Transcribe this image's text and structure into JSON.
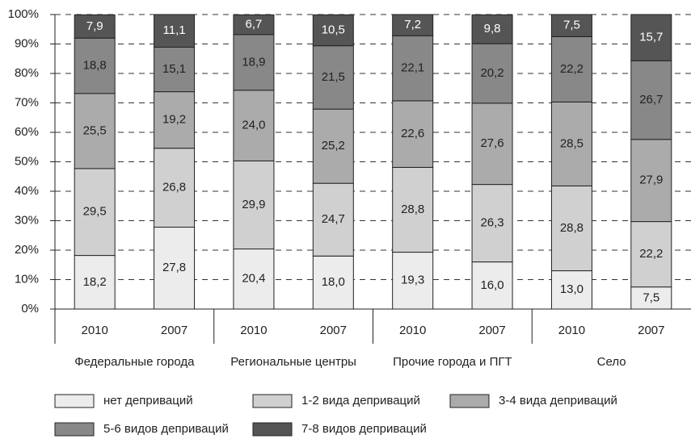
{
  "chart_data": {
    "type": "stacked_bar",
    "categories": [
      "2010",
      "2007",
      "2010",
      "2007",
      "2010",
      "2007",
      "2010",
      "2007"
    ],
    "groups": [
      "Федеральные города",
      "Региональные центры",
      "Прочие города и ПГТ",
      "Село"
    ],
    "ylim": [
      0,
      100
    ],
    "yticks": [
      {
        "value": 0,
        "label": "0%"
      },
      {
        "value": 10,
        "label": "10%"
      },
      {
        "value": 20,
        "label": "20%"
      },
      {
        "value": 30,
        "label": "30%"
      },
      {
        "value": 40,
        "label": "40%"
      },
      {
        "value": 50,
        "label": "50%"
      },
      {
        "value": 60,
        "label": "60%"
      },
      {
        "value": 70,
        "label": "70%"
      },
      {
        "value": 80,
        "label": "80%"
      },
      {
        "value": 90,
        "label": "90%"
      },
      {
        "value": 100,
        "label": "100%"
      }
    ],
    "grid": true,
    "series": [
      {
        "name": "нет деприваций",
        "color": "#ececec",
        "values": [
          18.2,
          27.8,
          20.4,
          18.0,
          19.3,
          16.0,
          13.0,
          7.5
        ],
        "value_labels": [
          "18,2",
          "27,8",
          "20,4",
          "18,0",
          "19,3",
          "16,0",
          "13,0",
          "7,5"
        ]
      },
      {
        "name": "1-2 вида деприваций",
        "color": "#d0d0d0",
        "values": [
          29.5,
          26.8,
          29.9,
          24.7,
          28.8,
          26.3,
          28.8,
          22.2
        ],
        "value_labels": [
          "29,5",
          "26,8",
          "29,9",
          "24,7",
          "28,8",
          "26,3",
          "28,8",
          "22,2"
        ]
      },
      {
        "name": "3-4 вида деприваций",
        "color": "#ababab",
        "values": [
          25.5,
          19.2,
          24.0,
          25.2,
          22.6,
          27.6,
          28.5,
          27.9
        ],
        "value_labels": [
          "25,5",
          "19,2",
          "24,0",
          "25,2",
          "22,6",
          "27,6",
          "28,5",
          "27,9"
        ]
      },
      {
        "name": "5-6 видов деприваций",
        "color": "#888888",
        "values": [
          18.8,
          15.1,
          18.9,
          21.5,
          22.1,
          20.2,
          22.2,
          26.7
        ],
        "value_labels": [
          "18,8",
          "15,1",
          "18,9",
          "21,5",
          "22,1",
          "20,2",
          "22,2",
          "26,7"
        ]
      },
      {
        "name": "7-8 видов деприваций",
        "color": "#555555",
        "values": [
          7.9,
          11.1,
          6.7,
          10.5,
          7.2,
          9.8,
          7.5,
          15.7
        ],
        "value_labels": [
          "7,9",
          "11,1",
          "6,7",
          "10,5",
          "7,2",
          "9,8",
          "7,5",
          "15,7"
        ]
      }
    ]
  }
}
